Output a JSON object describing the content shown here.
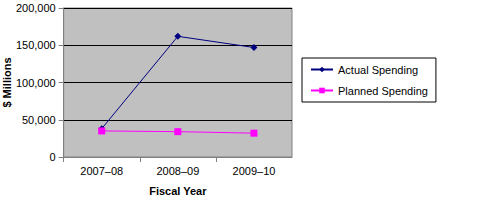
{
  "chart_data": {
    "type": "line",
    "x_label": "Fiscal Year",
    "y_label": "$ Millions",
    "categories": [
      "2007–08",
      "2008–09",
      "2009–10"
    ],
    "series": [
      {
        "name": "Actual Spending",
        "color": "#000080",
        "marker": "diamond",
        "line_style": "solid",
        "values": [
          38000,
          162000,
          147000
        ]
      },
      {
        "name": "Planned Spending",
        "color": "#ff00ff",
        "marker": "square",
        "line_style": "solid",
        "values": [
          35000,
          34000,
          32000
        ]
      }
    ],
    "ylim": [
      0,
      200000
    ],
    "yticks": [
      0,
      {
        "value": 50000,
        "label": "50,000"
      },
      {
        "value": 100000,
        "label": "100,000"
      },
      {
        "value": 150000,
        "label": "150,000"
      },
      {
        "value": 200000,
        "label": "200,000"
      }
    ],
    "grid": true,
    "legend": "right"
  }
}
